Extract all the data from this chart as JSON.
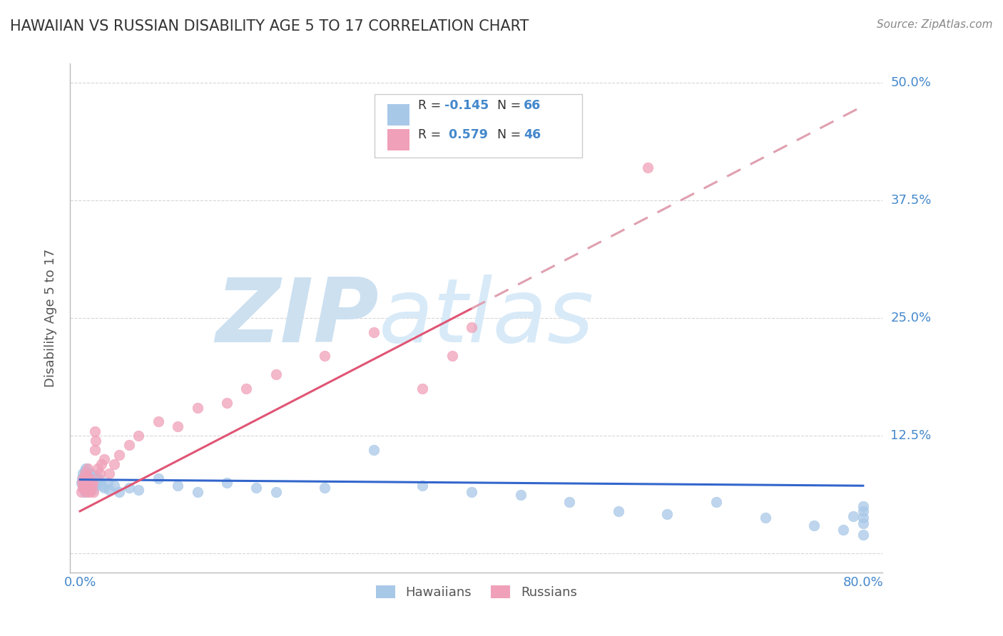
{
  "title": "HAWAIIAN VS RUSSIAN DISABILITY AGE 5 TO 17 CORRELATION CHART",
  "source": "Source: ZipAtlas.com",
  "ylabel": "Disability Age 5 to 17",
  "legend_label1": "Hawaiians",
  "legend_label2": "Russians",
  "R1": -0.145,
  "N1": 66,
  "R2": 0.579,
  "N2": 46,
  "xlim": [
    -0.01,
    0.82
  ],
  "ylim": [
    -0.02,
    0.52
  ],
  "yticks": [
    0.0,
    0.125,
    0.25,
    0.375,
    0.5
  ],
  "ytick_labels": [
    "",
    "12.5%",
    "25.0%",
    "37.5%",
    "50.0%"
  ],
  "xtick_labels_show": [
    "0.0%",
    "80.0%"
  ],
  "bg_color": "#ffffff",
  "grid_color": "#cccccc",
  "hawaiian_color": "#a8c8e8",
  "russian_color": "#f0a0b8",
  "trend_hawaiian_color": "#3366cc",
  "trend_russian_solid_color": "#e05575",
  "trend_russian_dash_color": "#e0a0b0",
  "watermark_zip_color": "#cce0f0",
  "watermark_atlas_color": "#d8eaf8",
  "axis_label_color": "#4488cc",
  "tick_label_color": "#4488cc",
  "title_color": "#333333",
  "source_color": "#888888",
  "hawaiian_x": [
    0.001,
    0.002,
    0.003,
    0.003,
    0.004,
    0.004,
    0.005,
    0.005,
    0.005,
    0.006,
    0.006,
    0.007,
    0.007,
    0.008,
    0.008,
    0.008,
    0.009,
    0.009,
    0.01,
    0.01,
    0.01,
    0.011,
    0.011,
    0.012,
    0.012,
    0.013,
    0.014,
    0.015,
    0.015,
    0.016,
    0.017,
    0.018,
    0.019,
    0.02,
    0.022,
    0.025,
    0.028,
    0.03,
    0.035,
    0.04,
    0.05,
    0.06,
    0.08,
    0.1,
    0.12,
    0.15,
    0.18,
    0.2,
    0.25,
    0.3,
    0.35,
    0.4,
    0.45,
    0.5,
    0.55,
    0.6,
    0.65,
    0.7,
    0.75,
    0.78,
    0.79,
    0.8,
    0.8,
    0.8,
    0.8,
    0.8
  ],
  "hawaiian_y": [
    0.075,
    0.08,
    0.07,
    0.085,
    0.082,
    0.078,
    0.072,
    0.088,
    0.065,
    0.09,
    0.078,
    0.075,
    0.082,
    0.07,
    0.079,
    0.086,
    0.076,
    0.083,
    0.07,
    0.078,
    0.08,
    0.072,
    0.085,
    0.075,
    0.08,
    0.068,
    0.077,
    0.073,
    0.082,
    0.079,
    0.075,
    0.08,
    0.076,
    0.078,
    0.072,
    0.07,
    0.075,
    0.068,
    0.072,
    0.065,
    0.07,
    0.068,
    0.08,
    0.072,
    0.065,
    0.075,
    0.07,
    0.065,
    0.07,
    0.11,
    0.072,
    0.065,
    0.062,
    0.055,
    0.045,
    0.042,
    0.055,
    0.038,
    0.03,
    0.025,
    0.04,
    0.02,
    0.045,
    0.038,
    0.032,
    0.05
  ],
  "russian_x": [
    0.001,
    0.002,
    0.003,
    0.003,
    0.004,
    0.004,
    0.005,
    0.005,
    0.006,
    0.006,
    0.007,
    0.007,
    0.008,
    0.008,
    0.009,
    0.009,
    0.01,
    0.01,
    0.011,
    0.012,
    0.013,
    0.014,
    0.015,
    0.015,
    0.016,
    0.018,
    0.02,
    0.022,
    0.025,
    0.03,
    0.035,
    0.04,
    0.05,
    0.06,
    0.08,
    0.1,
    0.12,
    0.15,
    0.17,
    0.2,
    0.25,
    0.3,
    0.35,
    0.38,
    0.4,
    0.58
  ],
  "russian_y": [
    0.065,
    0.075,
    0.07,
    0.08,
    0.072,
    0.078,
    0.068,
    0.085,
    0.07,
    0.079,
    0.065,
    0.082,
    0.068,
    0.09,
    0.072,
    0.075,
    0.065,
    0.08,
    0.068,
    0.072,
    0.075,
    0.065,
    0.11,
    0.13,
    0.12,
    0.09,
    0.085,
    0.095,
    0.1,
    0.085,
    0.095,
    0.105,
    0.115,
    0.125,
    0.14,
    0.135,
    0.155,
    0.16,
    0.175,
    0.19,
    0.21,
    0.235,
    0.175,
    0.21,
    0.24,
    0.41
  ],
  "russian_trend_x_end": 0.4,
  "hawaiian_trend_start_y": 0.0785,
  "hawaiian_trend_end_y": 0.072,
  "russian_trend_start_y": 0.045,
  "russian_trend_end_y": 0.26
}
